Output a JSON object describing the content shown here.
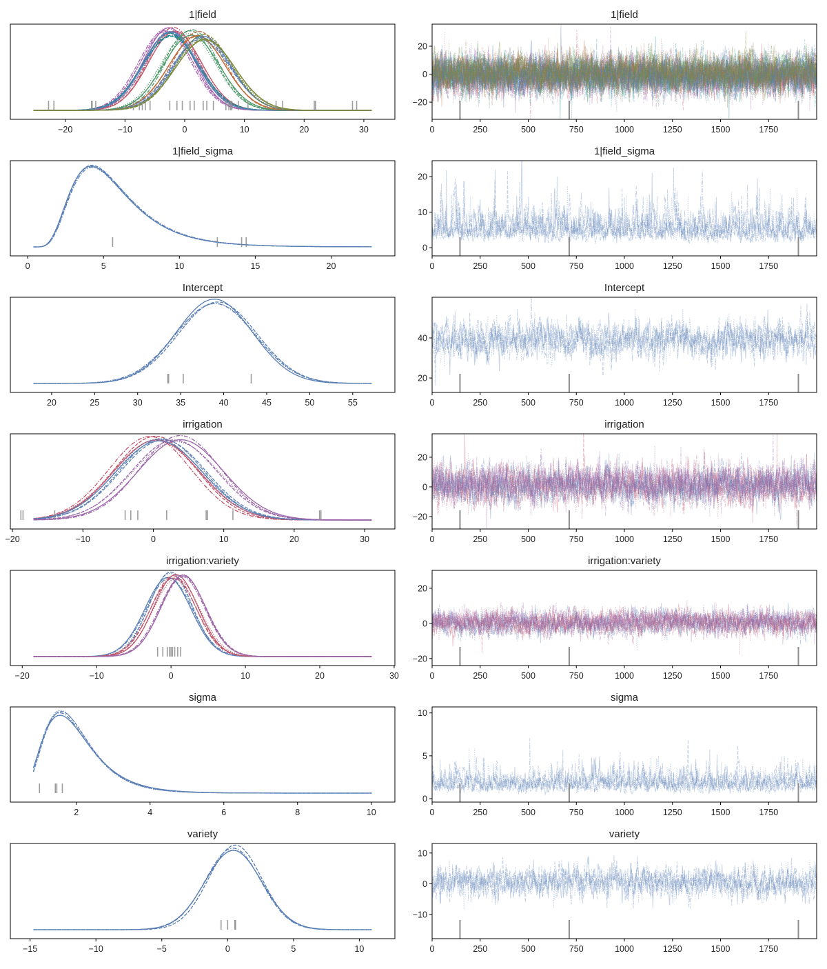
{
  "chart_data": [
    {
      "title": "1|field",
      "type": "line",
      "left": {
        "kind": "kde",
        "dist": "normal",
        "xlim": [
          -29.2,
          35.2
        ],
        "xticks": [
          "−20",
          "−10",
          "0",
          "10",
          "20",
          "30"
        ],
        "xtick_values": [
          -20,
          -10,
          0,
          10,
          20,
          30
        ],
        "series": [
          {
            "mean": -3.0,
            "sd": 4.3,
            "color": "#a561b0"
          },
          {
            "mean": -2.0,
            "sd": 4.3,
            "color": "#c0546a"
          },
          {
            "mean": -2.5,
            "sd": 4.6,
            "color": "#17868f"
          },
          {
            "mean": -2.3,
            "sd": 4.6,
            "color": "#5a7fb5"
          },
          {
            "mean": 1.0,
            "sd": 4.5,
            "color": "#4c9a6a"
          },
          {
            "mean": 2.0,
            "sd": 4.6,
            "color": "#c06b3c"
          },
          {
            "mean": 3.0,
            "sd": 4.8,
            "color": "#5a7fb5"
          },
          {
            "mean": 3.5,
            "sd": 4.8,
            "color": "#7d8a3a"
          }
        ],
        "rug": [
          -22.8,
          -21.9,
          -15.6,
          -15.5,
          -14.9,
          -8.6,
          -7.6,
          -7.1,
          -6.6,
          -5.8,
          -2.5,
          -1.3,
          -0.4,
          0.9,
          1.6,
          3.1,
          3.7,
          4.8,
          6.9,
          7.4,
          7.7,
          7.9,
          9.0,
          10.6,
          13.8,
          15.3,
          16.4,
          21.7,
          21.9,
          28.1,
          28.8
        ]
      },
      "right": {
        "kind": "trace",
        "ylim": [
          -32.3,
          35.8
        ],
        "yticks": [
          "20",
          "0",
          "−20"
        ],
        "ytick_values": [
          20,
          0,
          -20
        ],
        "center": 0,
        "sd": 6.5
      }
    },
    {
      "title": "1|field_sigma",
      "type": "line",
      "left": {
        "kind": "kde",
        "dist": "lognormal",
        "xlim": [
          -1.14,
          24.2
        ],
        "xticks": [
          "0",
          "5",
          "10",
          "15",
          "20"
        ],
        "xtick_values": [
          0,
          5,
          10,
          15,
          20
        ],
        "series": [
          {
            "mu": 1.65,
            "s": 0.45,
            "color": "#5a7fb5"
          }
        ],
        "rug": [
          5.6,
          12.5,
          14.1,
          14.4
        ]
      },
      "right": {
        "kind": "trace",
        "ylim": [
          -2.3,
          24.5
        ],
        "yticks": [
          "0",
          "10",
          "20"
        ],
        "ytick_values": [
          0,
          10,
          20
        ],
        "log_mu": 1.65,
        "log_s": 0.45
      }
    },
    {
      "title": "Intercept",
      "type": "line",
      "left": {
        "kind": "kde",
        "dist": "normal",
        "xlim": [
          15.2,
          59.9
        ],
        "xticks": [
          "20",
          "25",
          "30",
          "35",
          "40",
          "45",
          "50",
          "55"
        ],
        "xtick_values": [
          20,
          25,
          30,
          35,
          40,
          45,
          50,
          55
        ],
        "series": [
          {
            "mean": 39,
            "sd": 4.6,
            "color": "#5a7fb5"
          }
        ],
        "rug": [
          33.5,
          33.6,
          35.3,
          43.2
        ]
      },
      "right": {
        "kind": "trace",
        "ylim": [
          12.8,
          60.3
        ],
        "yticks": [
          "20",
          "40"
        ],
        "ytick_values": [
          20,
          40
        ],
        "center": 39,
        "sd": 4.6
      }
    },
    {
      "title": "irrigation",
      "type": "line",
      "left": {
        "kind": "kde",
        "dist": "normal",
        "xlim": [
          -20.3,
          34.3
        ],
        "xticks": [
          "−20",
          "−10",
          "0",
          "10",
          "20",
          "30"
        ],
        "xtick_values": [
          -20,
          -10,
          0,
          10,
          20,
          30
        ],
        "series": [
          {
            "mean": 0.0,
            "sd": 6.0,
            "color": "#c0546a"
          },
          {
            "mean": 1.2,
            "sd": 6.0,
            "color": "#5a7fb5"
          },
          {
            "mean": 3.5,
            "sd": 6.0,
            "color": "#9b65a8"
          }
        ],
        "rug": [
          -18.8,
          -18.5,
          -14.0,
          -4.0,
          -3.2,
          -2.2,
          1.9,
          7.5,
          7.7,
          11.3,
          23.6,
          23.8
        ]
      },
      "right": {
        "kind": "trace",
        "ylim": [
          -28.4,
          35.8
        ],
        "yticks": [
          "20",
          "0",
          "−20"
        ],
        "ytick_values": [
          20,
          0,
          -20
        ],
        "center": 1.5,
        "sd": 6.5
      }
    },
    {
      "title": "irrigation:variety",
      "type": "line",
      "left": {
        "kind": "kde",
        "dist": "normal",
        "xlim": [
          -21.6,
          30.1
        ],
        "xticks": [
          "−20",
          "−10",
          "0",
          "10",
          "20",
          "30"
        ],
        "xtick_values": [
          -20,
          -10,
          0,
          10,
          20,
          30
        ],
        "series": [
          {
            "mean": -0.3,
            "sd": 3.0,
            "color": "#5a7fb5"
          },
          {
            "mean": 0.5,
            "sd": 3.0,
            "color": "#c0546a"
          },
          {
            "mean": 1.5,
            "sd": 3.0,
            "color": "#9b65a8"
          }
        ],
        "rug": [
          -1.8,
          -1.1,
          -0.5,
          -0.2,
          0.0,
          0.2,
          0.5,
          0.9,
          1.3
        ]
      },
      "right": {
        "kind": "trace",
        "ylim": [
          -24.0,
          30.2
        ],
        "yticks": [
          "20",
          "0",
          "−20"
        ],
        "ytick_values": [
          20,
          0,
          -20
        ],
        "center": 0.5,
        "sd": 3.5
      }
    },
    {
      "title": "sigma",
      "type": "line",
      "left": {
        "kind": "kde",
        "dist": "lognormal",
        "xlim": [
          0.21,
          10.64
        ],
        "xticks": [
          "2",
          "4",
          "6",
          "8",
          "10"
        ],
        "xtick_values": [
          2,
          4,
          6,
          8,
          10
        ],
        "series": [
          {
            "mu": 0.6,
            "s": 0.4,
            "color": "#5a7fb5"
          }
        ],
        "rug": [
          1.0,
          1.43,
          1.47,
          1.62
        ]
      },
      "right": {
        "kind": "trace",
        "ylim": [
          -0.4,
          10.7
        ],
        "yticks": [
          "0",
          "5",
          "10"
        ],
        "ytick_values": [
          0,
          5,
          10
        ],
        "log_mu": 0.6,
        "log_s": 0.4
      }
    },
    {
      "title": "variety",
      "type": "line",
      "left": {
        "kind": "kde",
        "dist": "normal",
        "xlim": [
          -16.5,
          12.7
        ],
        "xticks": [
          "−15",
          "−10",
          "−5",
          "0",
          "5",
          "10"
        ],
        "xtick_values": [
          -15,
          -10,
          -5,
          0,
          5,
          10
        ],
        "series": [
          {
            "mean": 0.5,
            "sd": 2.1,
            "color": "#5a7fb5"
          }
        ],
        "rug": [
          -0.5,
          0.0,
          0.55,
          0.6
        ]
      },
      "right": {
        "kind": "trace",
        "ylim": [
          -17.9,
          13.1
        ],
        "yticks": [
          "10",
          "0",
          "−10"
        ],
        "ytick_values": [
          10,
          0,
          -10
        ],
        "center": 0.5,
        "sd": 2.6
      }
    }
  ],
  "trace_common": {
    "xlim": [
      0,
      2000
    ],
    "xticks": [
      "0",
      "250",
      "500",
      "750",
      "1000",
      "1250",
      "1500",
      "1750"
    ],
    "xtick_values": [
      0,
      250,
      500,
      750,
      1000,
      1250,
      1500,
      1750
    ],
    "divergences": [
      145,
      713,
      1905
    ],
    "chains": 4,
    "rug_color": "#8c8c8c"
  }
}
